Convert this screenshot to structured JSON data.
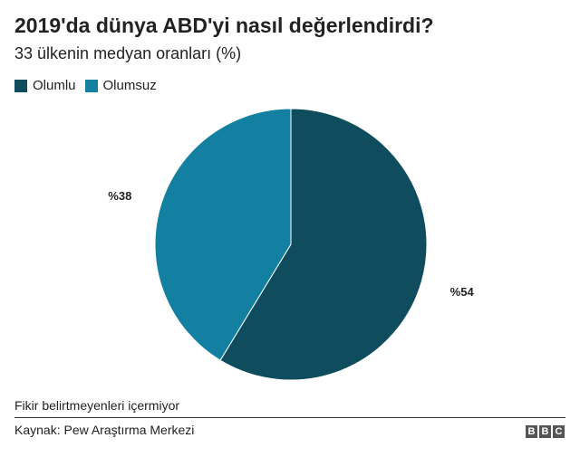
{
  "title": "2019'da dünya ABD'yi nasıl değerlendirdi?",
  "subtitle": "33 ülkenin medyan oranları (%)",
  "note": "Fikir belirtmeyenleri içermiyor",
  "source": "Kaynak: Pew Araştırma Merkezi",
  "logo": {
    "letters": [
      "B",
      "B",
      "C"
    ]
  },
  "chart_data": {
    "type": "pie",
    "legend_position": "top-left",
    "slices": [
      {
        "name": "Olumlu",
        "value": 54,
        "label": "%54",
        "color": "#0e4c5e"
      },
      {
        "name": "Olumsuz",
        "value": 38,
        "label": "%38",
        "color": "#1380a1"
      }
    ]
  }
}
